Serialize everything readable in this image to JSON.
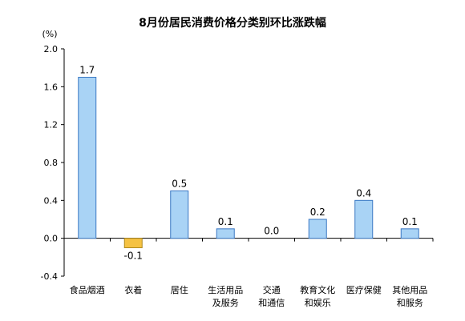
{
  "chart_data": {
    "type": "bar",
    "title": "8月份居民消费价格分类别环比涨跌幅",
    "unit": "(%)",
    "ylim": [
      -0.4,
      2.0
    ],
    "yticks": [
      "2.0",
      "1.6",
      "1.2",
      "0.8",
      "0.4",
      "0.0",
      "-0.4"
    ],
    "categories": [
      [
        "食品烟酒"
      ],
      [
        "衣着"
      ],
      [
        "居住"
      ],
      [
        "生活用品",
        "及服务"
      ],
      [
        "交通",
        "和通信"
      ],
      [
        "教育文化",
        "和娱乐"
      ],
      [
        "医疗保健"
      ],
      [
        "其他用品",
        "和服务"
      ]
    ],
    "values": [
      1.7,
      -0.1,
      0.5,
      0.1,
      0.0,
      0.2,
      0.4,
      0.1
    ],
    "data_labels": [
      "1.7",
      "-0.1",
      "0.5",
      "0.1",
      "0.0",
      "0.2",
      "0.4",
      "0.1"
    ],
    "colors": {
      "positive_fill": "#a9d3f5",
      "positive_stroke": "#3a78c4",
      "negative_fill": "#f5c242",
      "negative_stroke": "#b08a1e",
      "axis": "#000000"
    }
  }
}
